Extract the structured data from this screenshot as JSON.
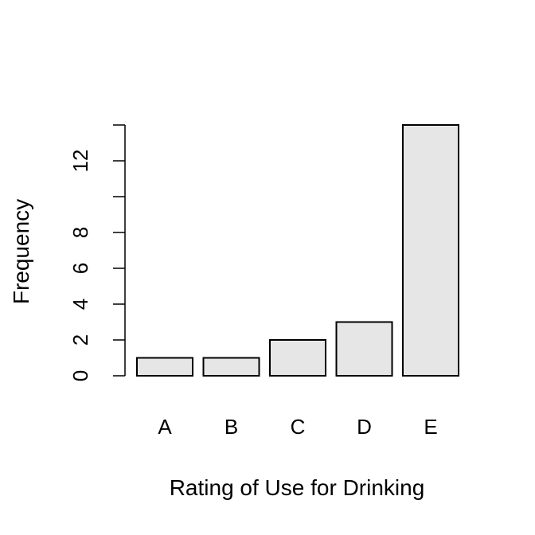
{
  "chart_data": {
    "type": "bar",
    "categories": [
      "A",
      "B",
      "C",
      "D",
      "E"
    ],
    "values": [
      1,
      1,
      2,
      3,
      14
    ],
    "xlabel": "Rating of Use for Drinking",
    "ylabel": "Frequency",
    "ylim": [
      0,
      14
    ],
    "yticks": [
      0,
      2,
      4,
      6,
      8,
      10,
      12,
      14
    ],
    "ytick_labels": [
      "0",
      "2",
      "4",
      "6",
      "8",
      "",
      "12",
      ""
    ],
    "bar_color": "#e6e6e6",
    "grid": false,
    "legend": "none"
  }
}
